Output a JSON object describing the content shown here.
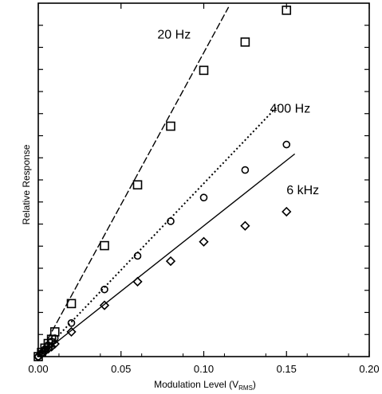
{
  "chart_data": {
    "type": "scatter",
    "title": "",
    "xlabel": "Modulation Level (V",
    "xlabel_sub": "RMS",
    "xlabel_close": ")",
    "ylabel": "Relative Response",
    "xlim": [
      0.0,
      0.2
    ],
    "x_ticks": [
      "0.00",
      "0.05",
      "0.10",
      "0.15",
      "0.20"
    ],
    "x_tick_values": [
      0.0,
      0.05,
      0.1,
      0.15,
      0.2
    ],
    "ylim": [
      0,
      1
    ],
    "y_tick_count": 16,
    "grid": false,
    "series": [
      {
        "name": "20 Hz",
        "marker": "square",
        "x": [
          0.0,
          0.002,
          0.004,
          0.006,
          0.008,
          0.01,
          0.02,
          0.04,
          0.06,
          0.08,
          0.1,
          0.125,
          0.15
        ],
        "y": [
          0.0,
          0.012,
          0.024,
          0.037,
          0.049,
          0.07,
          0.15,
          0.314,
          0.486,
          0.652,
          0.81,
          0.89,
          0.98
        ],
        "fit_slope": 8.6
      },
      {
        "name": "400 Hz",
        "marker": "circle",
        "x": [
          0.0,
          0.002,
          0.004,
          0.006,
          0.008,
          0.01,
          0.02,
          0.04,
          0.06,
          0.08,
          0.1,
          0.125,
          0.15
        ],
        "y": [
          0.0,
          0.01,
          0.021,
          0.032,
          0.043,
          0.052,
          0.095,
          0.19,
          0.285,
          0.383,
          0.45,
          0.528,
          0.6
        ],
        "fit_slope": 4.9
      },
      {
        "name": "6 kHz",
        "marker": "diamond",
        "x": [
          0.0,
          0.002,
          0.004,
          0.006,
          0.008,
          0.01,
          0.02,
          0.04,
          0.06,
          0.08,
          0.1,
          0.125,
          0.15
        ],
        "y": [
          0.0,
          0.008,
          0.015,
          0.022,
          0.028,
          0.036,
          0.07,
          0.145,
          0.212,
          0.27,
          0.325,
          0.37,
          0.41
        ],
        "fit_slope": 3.7
      }
    ]
  }
}
